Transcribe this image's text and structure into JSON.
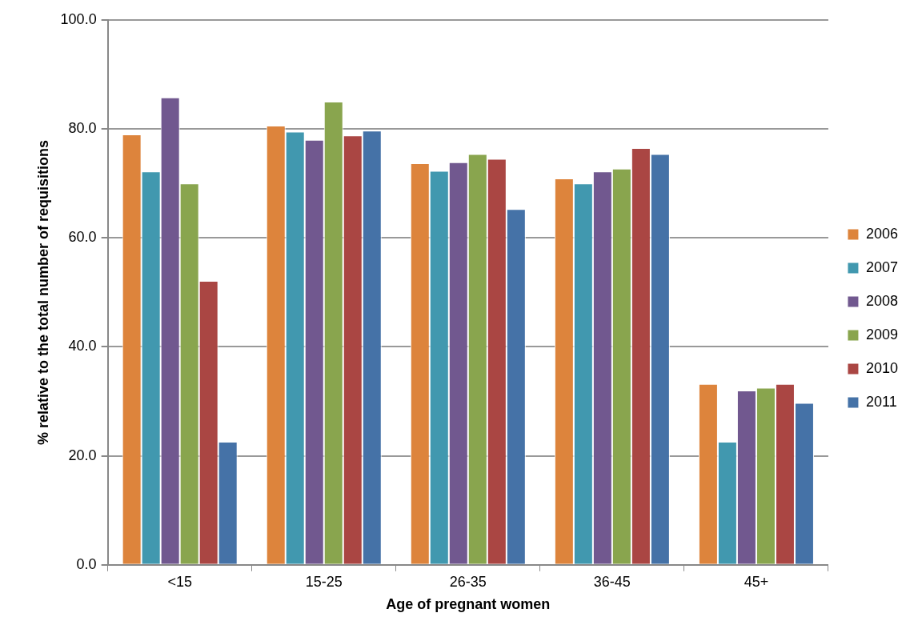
{
  "chart_data": {
    "type": "bar",
    "xlabel": "Age of pregnant women",
    "ylabel": "% relative to the total number of requisitions",
    "categories": [
      "<15",
      "15-25",
      "26-35",
      "36-45",
      "45+"
    ],
    "series": [
      {
        "name": "2006",
        "color": "#dd843c",
        "values": [
          79.0,
          80.6,
          73.7,
          70.9,
          33.2
        ]
      },
      {
        "name": "2007",
        "color": "#4198af",
        "values": [
          72.2,
          79.5,
          72.3,
          70.0,
          22.6
        ]
      },
      {
        "name": "2008",
        "color": "#71588f",
        "values": [
          85.8,
          78.0,
          73.9,
          72.2,
          32.0
        ]
      },
      {
        "name": "2009",
        "color": "#89a54e",
        "values": [
          70.0,
          85.0,
          75.4,
          72.7,
          32.5
        ]
      },
      {
        "name": "2010",
        "color": "#aa4643",
        "values": [
          52.1,
          78.8,
          74.5,
          76.5,
          33.2
        ]
      },
      {
        "name": "2011",
        "color": "#4572a7",
        "values": [
          22.6,
          79.7,
          65.3,
          75.4,
          29.7
        ]
      }
    ],
    "ylim": [
      0,
      100
    ],
    "yticks": [
      {
        "value": 0,
        "label": "0.0"
      },
      {
        "value": 20,
        "label": "20.0"
      },
      {
        "value": 40,
        "label": "40.0"
      },
      {
        "value": 60,
        "label": "60.0"
      },
      {
        "value": 80,
        "label": "80.0"
      },
      {
        "value": 100,
        "label": "100.0"
      }
    ],
    "grid": "y",
    "legend": "right"
  }
}
